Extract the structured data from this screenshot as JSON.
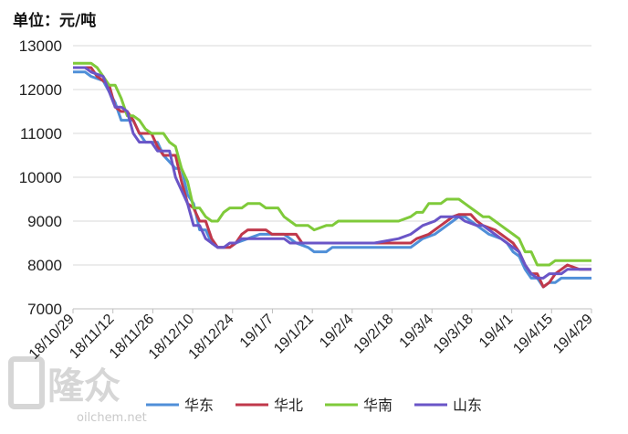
{
  "unit_label": "单位：元/吨",
  "watermark": {
    "logo_text": "隆众",
    "site": "oilchem.net"
  },
  "chart_data": {
    "type": "line",
    "ylim": [
      7000,
      13000
    ],
    "yticks": [
      7000,
      8000,
      9000,
      10000,
      11000,
      12000,
      13000
    ],
    "grid": "horizontal",
    "legend_position": "bottom",
    "x_dates": [
      "18/10/29",
      "18/11/12",
      "18/11/26",
      "18/12/10",
      "18/12/24",
      "19/1/7",
      "19/1/21",
      "19/2/4",
      "19/2/18",
      "19/3/4",
      "19/3/18",
      "19/4/1",
      "19/4/15",
      "19/4/29"
    ],
    "series": [
      {
        "name": "华东",
        "color": "#4f8fd8",
        "points": [
          [
            0,
            12400
          ],
          [
            2,
            12400
          ],
          [
            3,
            12300
          ],
          [
            5,
            12200
          ],
          [
            7,
            11700
          ],
          [
            8,
            11300
          ],
          [
            10,
            11300
          ],
          [
            11,
            11000
          ],
          [
            12,
            10800
          ],
          [
            14,
            10800
          ],
          [
            15,
            10500
          ],
          [
            17,
            10200
          ],
          [
            18,
            10200
          ],
          [
            19,
            9600
          ],
          [
            20,
            9400
          ],
          [
            21,
            8800
          ],
          [
            22,
            8800
          ],
          [
            23,
            8500
          ],
          [
            24,
            8400
          ],
          [
            26,
            8400
          ],
          [
            27,
            8500
          ],
          [
            29,
            8600
          ],
          [
            31,
            8700
          ],
          [
            35,
            8700
          ],
          [
            37,
            8500
          ],
          [
            39,
            8400
          ],
          [
            40,
            8300
          ],
          [
            42,
            8300
          ],
          [
            43,
            8400
          ],
          [
            48,
            8400
          ],
          [
            54,
            8400
          ],
          [
            56,
            8400
          ],
          [
            57,
            8500
          ],
          [
            58,
            8600
          ],
          [
            60,
            8700
          ],
          [
            61,
            8800
          ],
          [
            62,
            8900
          ],
          [
            63,
            9000
          ],
          [
            64,
            9100
          ],
          [
            65,
            9100
          ],
          [
            66,
            9000
          ],
          [
            68,
            8800
          ],
          [
            69,
            8700
          ],
          [
            71,
            8600
          ],
          [
            72,
            8500
          ],
          [
            73,
            8300
          ],
          [
            74,
            8200
          ],
          [
            75,
            7900
          ],
          [
            76,
            7700
          ],
          [
            77,
            7700
          ],
          [
            78,
            7500
          ],
          [
            79,
            7600
          ],
          [
            80,
            7600
          ],
          [
            81,
            7700
          ],
          [
            82,
            7700
          ],
          [
            86,
            7700
          ]
        ]
      },
      {
        "name": "华北",
        "color": "#c0384b",
        "points": [
          [
            0,
            12500
          ],
          [
            3,
            12500
          ],
          [
            4,
            12300
          ],
          [
            6,
            12100
          ],
          [
            7,
            11600
          ],
          [
            8,
            11500
          ],
          [
            9,
            11500
          ],
          [
            10,
            11300
          ],
          [
            11,
            11000
          ],
          [
            13,
            11000
          ],
          [
            14,
            10700
          ],
          [
            15,
            10500
          ],
          [
            17,
            10500
          ],
          [
            18,
            9900
          ],
          [
            19,
            9400
          ],
          [
            20,
            9300
          ],
          [
            21,
            9000
          ],
          [
            22,
            9000
          ],
          [
            23,
            8600
          ],
          [
            24,
            8400
          ],
          [
            26,
            8400
          ],
          [
            27,
            8500
          ],
          [
            28,
            8700
          ],
          [
            29,
            8800
          ],
          [
            32,
            8800
          ],
          [
            33,
            8700
          ],
          [
            37,
            8700
          ],
          [
            38,
            8500
          ],
          [
            40,
            8500
          ],
          [
            42,
            8500
          ],
          [
            44,
            8500
          ],
          [
            50,
            8500
          ],
          [
            54,
            8500
          ],
          [
            56,
            8500
          ],
          [
            57,
            8600
          ],
          [
            59,
            8700
          ],
          [
            60,
            8800
          ],
          [
            61,
            8900
          ],
          [
            62,
            9000
          ],
          [
            63,
            9100
          ],
          [
            64,
            9150
          ],
          [
            66,
            9150
          ],
          [
            67,
            9000
          ],
          [
            68,
            8900
          ],
          [
            70,
            8800
          ],
          [
            71,
            8700
          ],
          [
            72,
            8600
          ],
          [
            73,
            8500
          ],
          [
            74,
            8300
          ],
          [
            75,
            8000
          ],
          [
            76,
            7800
          ],
          [
            77,
            7800
          ],
          [
            78,
            7500
          ],
          [
            79,
            7600
          ],
          [
            80,
            7800
          ],
          [
            81,
            7900
          ],
          [
            82,
            8000
          ],
          [
            83,
            7950
          ],
          [
            84,
            7900
          ],
          [
            86,
            7900
          ]
        ]
      },
      {
        "name": "华南",
        "color": "#7fca3a",
        "points": [
          [
            0,
            12600
          ],
          [
            3,
            12600
          ],
          [
            4,
            12500
          ],
          [
            5,
            12300
          ],
          [
            6,
            12100
          ],
          [
            7,
            12100
          ],
          [
            8,
            11800
          ],
          [
            9,
            11400
          ],
          [
            10,
            11400
          ],
          [
            11,
            11300
          ],
          [
            12,
            11100
          ],
          [
            13,
            11000
          ],
          [
            15,
            11000
          ],
          [
            16,
            10800
          ],
          [
            17,
            10700
          ],
          [
            18,
            10200
          ],
          [
            19,
            9900
          ],
          [
            20,
            9300
          ],
          [
            21,
            9300
          ],
          [
            22,
            9100
          ],
          [
            23,
            9000
          ],
          [
            24,
            9000
          ],
          [
            25,
            9200
          ],
          [
            26,
            9300
          ],
          [
            28,
            9300
          ],
          [
            29,
            9400
          ],
          [
            31,
            9400
          ],
          [
            32,
            9300
          ],
          [
            34,
            9300
          ],
          [
            35,
            9100
          ],
          [
            36,
            9000
          ],
          [
            37,
            8900
          ],
          [
            39,
            8900
          ],
          [
            40,
            8800
          ],
          [
            42,
            8900
          ],
          [
            43,
            8900
          ],
          [
            44,
            9000
          ],
          [
            52,
            9000
          ],
          [
            54,
            9000
          ],
          [
            56,
            9100
          ],
          [
            57,
            9200
          ],
          [
            58,
            9200
          ],
          [
            59,
            9400
          ],
          [
            60,
            9400
          ],
          [
            61,
            9400
          ],
          [
            62,
            9500
          ],
          [
            63,
            9500
          ],
          [
            64,
            9500
          ],
          [
            65,
            9400
          ],
          [
            66,
            9300
          ],
          [
            67,
            9200
          ],
          [
            68,
            9100
          ],
          [
            69,
            9100
          ],
          [
            70,
            9000
          ],
          [
            71,
            8900
          ],
          [
            72,
            8800
          ],
          [
            73,
            8700
          ],
          [
            74,
            8600
          ],
          [
            75,
            8300
          ],
          [
            76,
            8300
          ],
          [
            77,
            8000
          ],
          [
            78,
            8000
          ],
          [
            79,
            8000
          ],
          [
            80,
            8100
          ],
          [
            86,
            8100
          ]
        ]
      },
      {
        "name": "山东",
        "color": "#6a55c7",
        "points": [
          [
            0,
            12500
          ],
          [
            2,
            12500
          ],
          [
            3,
            12400
          ],
          [
            5,
            12300
          ],
          [
            7,
            11600
          ],
          [
            8,
            11600
          ],
          [
            9,
            11500
          ],
          [
            10,
            11000
          ],
          [
            11,
            10800
          ],
          [
            13,
            10800
          ],
          [
            14,
            10600
          ],
          [
            16,
            10600
          ],
          [
            17,
            10000
          ],
          [
            18,
            9700
          ],
          [
            19,
            9400
          ],
          [
            20,
            8900
          ],
          [
            21,
            8900
          ],
          [
            22,
            8600
          ],
          [
            23,
            8500
          ],
          [
            24,
            8400
          ],
          [
            25,
            8400
          ],
          [
            26,
            8500
          ],
          [
            27,
            8500
          ],
          [
            28,
            8600
          ],
          [
            30,
            8600
          ],
          [
            35,
            8600
          ],
          [
            36,
            8500
          ],
          [
            38,
            8500
          ],
          [
            40,
            8500
          ],
          [
            44,
            8500
          ],
          [
            46,
            8500
          ],
          [
            50,
            8500
          ],
          [
            54,
            8600
          ],
          [
            56,
            8700
          ],
          [
            57,
            8800
          ],
          [
            58,
            8900
          ],
          [
            60,
            9000
          ],
          [
            61,
            9100
          ],
          [
            62,
            9100
          ],
          [
            63,
            9100
          ],
          [
            64,
            9100
          ],
          [
            65,
            9000
          ],
          [
            67,
            8900
          ],
          [
            68,
            8900
          ],
          [
            69,
            8800
          ],
          [
            70,
            8700
          ],
          [
            71,
            8600
          ],
          [
            72,
            8500
          ],
          [
            73,
            8400
          ],
          [
            74,
            8300
          ],
          [
            75,
            8000
          ],
          [
            76,
            7800
          ],
          [
            77,
            7700
          ],
          [
            78,
            7700
          ],
          [
            79,
            7800
          ],
          [
            80,
            7800
          ],
          [
            81,
            7800
          ],
          [
            82,
            7900
          ],
          [
            86,
            7900
          ]
        ]
      }
    ],
    "x_index_max": 86
  }
}
